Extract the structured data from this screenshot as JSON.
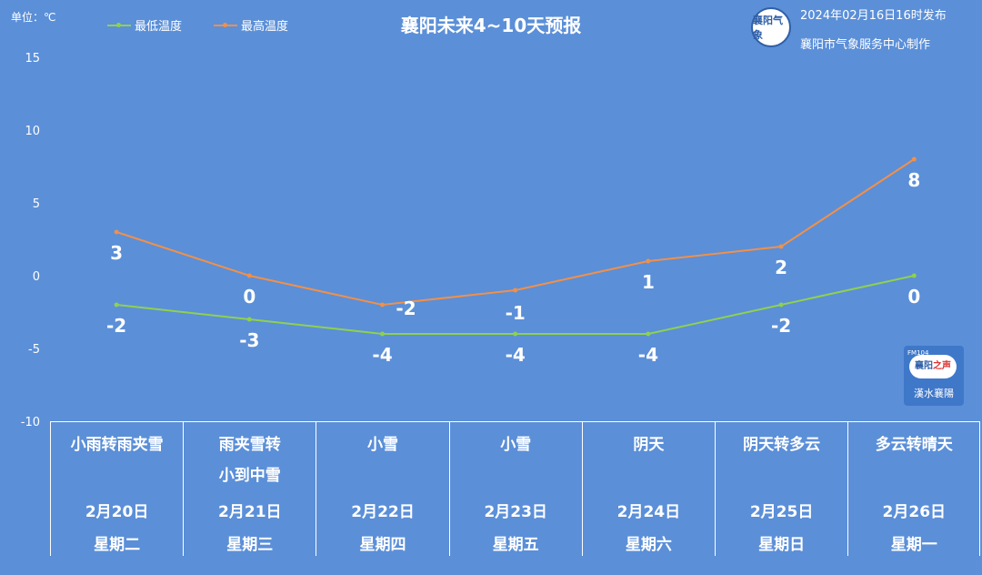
{
  "unit_label": "单位：℃",
  "publish_time": "2024年02月16日16时发布",
  "maker": "襄阳市气象服务中心制作",
  "logo_text": "襄阳气象",
  "badge": {
    "main": "襄阳",
    "accent": "之声",
    "sub": "漢水襄陽",
    "small": "FM104"
  },
  "colors": {
    "background": "#5b8fd8",
    "low": "#8fd14f",
    "high": "#f0904a",
    "text": "#ffffff"
  },
  "chart_data": {
    "type": "line",
    "title": "襄阳未来4~10天预报",
    "yticks": [
      15,
      10,
      5,
      0,
      -5,
      -10
    ],
    "ylim": [
      -10,
      15
    ],
    "grid": false,
    "legend_position": "top-left",
    "categories": [
      "2月20日",
      "2月21日",
      "2月22日",
      "2月23日",
      "2月24日",
      "2月25日",
      "2月26日"
    ],
    "series": [
      {
        "name": "最低温度",
        "values": [
          -2,
          -3,
          -4,
          -4,
          -4,
          -2,
          0
        ]
      },
      {
        "name": "最高温度",
        "values": [
          3,
          0,
          -2,
          -1,
          1,
          2,
          8
        ]
      }
    ]
  },
  "days": [
    {
      "weather": [
        "小雨转雨夹雪"
      ],
      "date": "2月20日",
      "week": "星期二"
    },
    {
      "weather": [
        "雨夹雪转",
        "小到中雪"
      ],
      "date": "2月21日",
      "week": "星期三"
    },
    {
      "weather": [
        "小雪"
      ],
      "date": "2月22日",
      "week": "星期四"
    },
    {
      "weather": [
        "小雪"
      ],
      "date": "2月23日",
      "week": "星期五"
    },
    {
      "weather": [
        "阴天"
      ],
      "date": "2月24日",
      "week": "星期六"
    },
    {
      "weather": [
        "阴天转多云"
      ],
      "date": "2月25日",
      "week": "星期日"
    },
    {
      "weather": [
        "多云转晴天"
      ],
      "date": "2月26日",
      "week": "星期一"
    }
  ]
}
